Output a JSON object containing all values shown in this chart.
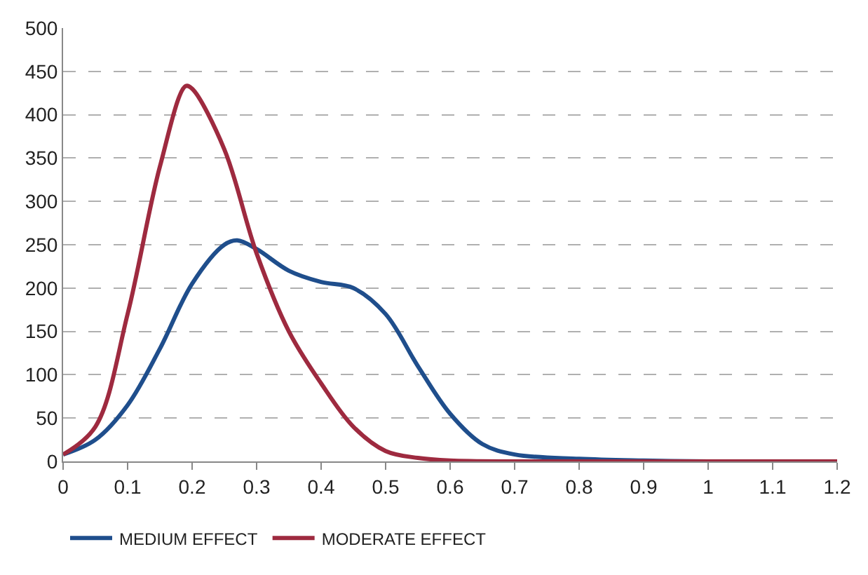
{
  "chart_data": {
    "type": "line",
    "x": [
      0,
      0.05,
      0.1,
      0.15,
      0.2,
      0.25,
      0.27,
      0.3,
      0.35,
      0.4,
      0.45,
      0.5,
      0.55,
      0.6,
      0.65,
      0.7,
      0.8,
      0.9,
      1.0,
      1.1,
      1.2
    ],
    "series": [
      {
        "name": "MEDIUM EFFECT",
        "color": "#1f4e8c",
        "values": [
          8,
          25,
          65,
          130,
          205,
          250,
          255,
          245,
          220,
          207,
          200,
          170,
          110,
          55,
          20,
          8,
          3,
          1,
          0,
          0,
          0
        ]
      },
      {
        "name": "MODERATE EFFECT",
        "color": "#9e2a3f",
        "x": [
          0,
          0.05,
          0.1,
          0.15,
          0.19,
          0.2,
          0.25,
          0.3,
          0.35,
          0.4,
          0.45,
          0.5,
          0.55,
          0.6,
          0.7,
          0.8,
          1.0,
          1.2
        ],
        "values": [
          8,
          40,
          170,
          340,
          433,
          430,
          360,
          240,
          150,
          90,
          40,
          12,
          4,
          1,
          0,
          0,
          0,
          0
        ]
      }
    ],
    "xlim": [
      0,
      1.2
    ],
    "xticks": [
      0,
      0.1,
      0.2,
      0.3,
      0.4,
      0.5,
      0.6,
      0.7,
      0.8,
      0.9,
      1,
      1.1,
      1.2
    ],
    "ylim": [
      0,
      500
    ],
    "yticks": [
      0,
      50,
      100,
      150,
      200,
      250,
      300,
      350,
      400,
      450,
      500
    ],
    "grid": "y",
    "legend": "bottom",
    "line_style": "solid",
    "marker": "none"
  }
}
